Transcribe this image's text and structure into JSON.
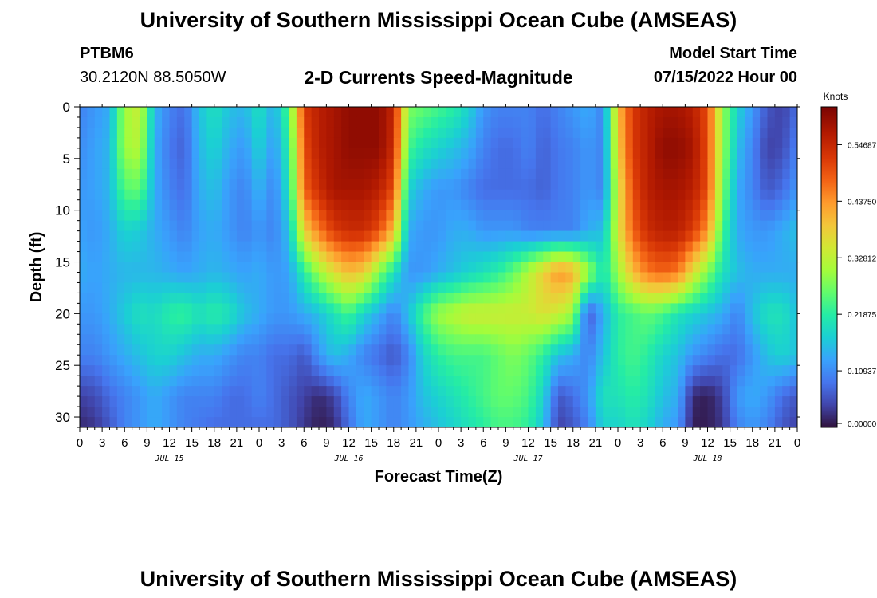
{
  "header": {
    "title": "University of Southern Mississippi Ocean Cube (AMSEAS)",
    "station": "PTBM6",
    "coordinates": "30.2120N  88.5050W",
    "subtitle": "2-D Currents Speed-Magnitude",
    "model_start_label": "Model Start Time",
    "model_start_value": "07/15/2022 Hour 00"
  },
  "footer": {
    "title": "University of Southern Mississippi Ocean Cube (AMSEAS)"
  },
  "chart_data": {
    "type": "heatmap",
    "xlabel": "Forecast Time(Z)",
    "ylabel": "Depth (ft)",
    "colorbar_label": "Knots",
    "x_tick_labels": [
      "0",
      "3",
      "6",
      "9",
      "12",
      "15",
      "18",
      "21",
      "0",
      "3",
      "6",
      "9",
      "12",
      "15",
      "18",
      "21",
      "0",
      "3",
      "6",
      "9",
      "12",
      "15",
      "18",
      "21",
      "0",
      "3",
      "6",
      "9",
      "12",
      "15",
      "18",
      "21",
      "0"
    ],
    "x_range_hours": [
      0,
      96
    ],
    "date_labels": [
      {
        "label": "JUL 15",
        "hour": 12
      },
      {
        "label": "JUL 16",
        "hour": 36
      },
      {
        "label": "JUL 17",
        "hour": 60
      },
      {
        "label": "JUL 18",
        "hour": 84
      }
    ],
    "y_ticks": [
      0,
      5,
      10,
      15,
      20,
      25,
      30
    ],
    "y_range": [
      0,
      31
    ],
    "y_inverted": true,
    "colorbar_ticks": [
      "0.00000",
      "0.10937",
      "0.21875",
      "0.32812",
      "0.43750",
      "0.54687"
    ],
    "colorbar_range": [
      0,
      0.62
    ],
    "time_hours": [
      0,
      2,
      4,
      6,
      8,
      10,
      12,
      14,
      16,
      18,
      20,
      22,
      24,
      26,
      28,
      30,
      32,
      34,
      36,
      38,
      40,
      42,
      44,
      46,
      48,
      50,
      52,
      54,
      56,
      58,
      60,
      62,
      64,
      66,
      68,
      70,
      72,
      74,
      76,
      78,
      80,
      82,
      84,
      86,
      88,
      90,
      92,
      94,
      96
    ],
    "depths_ft": [
      0,
      4,
      8,
      12,
      16,
      20,
      24,
      28,
      31
    ],
    "values": [
      [
        0.1,
        0.12,
        0.14,
        0.3,
        0.34,
        0.15,
        0.1,
        0.08,
        0.16,
        0.2,
        0.16,
        0.15,
        0.2,
        0.14,
        0.25,
        0.52,
        0.56,
        0.58,
        0.6,
        0.6,
        0.6,
        0.55,
        0.28,
        0.26,
        0.24,
        0.22,
        0.18,
        0.12,
        0.1,
        0.1,
        0.1,
        0.08,
        0.1,
        0.12,
        0.14,
        0.1,
        0.4,
        0.52,
        0.56,
        0.58,
        0.58,
        0.56,
        0.5,
        0.3,
        0.18,
        0.12,
        0.06,
        0.04,
        0.08
      ],
      [
        0.11,
        0.13,
        0.15,
        0.3,
        0.32,
        0.14,
        0.09,
        0.07,
        0.15,
        0.18,
        0.14,
        0.12,
        0.18,
        0.12,
        0.22,
        0.5,
        0.56,
        0.58,
        0.6,
        0.6,
        0.6,
        0.54,
        0.24,
        0.2,
        0.18,
        0.16,
        0.14,
        0.1,
        0.08,
        0.08,
        0.1,
        0.07,
        0.09,
        0.1,
        0.12,
        0.1,
        0.38,
        0.52,
        0.56,
        0.6,
        0.6,
        0.58,
        0.5,
        0.3,
        0.16,
        0.1,
        0.04,
        0.05,
        0.1
      ],
      [
        0.12,
        0.13,
        0.15,
        0.25,
        0.26,
        0.14,
        0.1,
        0.08,
        0.14,
        0.16,
        0.12,
        0.1,
        0.15,
        0.1,
        0.2,
        0.48,
        0.54,
        0.58,
        0.58,
        0.58,
        0.56,
        0.5,
        0.18,
        0.14,
        0.12,
        0.12,
        0.1,
        0.08,
        0.08,
        0.08,
        0.08,
        0.07,
        0.09,
        0.1,
        0.12,
        0.1,
        0.35,
        0.5,
        0.56,
        0.58,
        0.58,
        0.56,
        0.5,
        0.28,
        0.14,
        0.1,
        0.06,
        0.08,
        0.12
      ],
      [
        0.13,
        0.12,
        0.14,
        0.18,
        0.17,
        0.14,
        0.12,
        0.1,
        0.13,
        0.14,
        0.12,
        0.1,
        0.12,
        0.1,
        0.16,
        0.38,
        0.46,
        0.52,
        0.54,
        0.54,
        0.5,
        0.4,
        0.14,
        0.12,
        0.12,
        0.14,
        0.14,
        0.12,
        0.12,
        0.12,
        0.1,
        0.1,
        0.1,
        0.1,
        0.14,
        0.16,
        0.35,
        0.48,
        0.54,
        0.56,
        0.56,
        0.52,
        0.44,
        0.24,
        0.14,
        0.12,
        0.12,
        0.14,
        0.16
      ],
      [
        0.14,
        0.13,
        0.14,
        0.15,
        0.15,
        0.15,
        0.14,
        0.13,
        0.14,
        0.15,
        0.14,
        0.13,
        0.14,
        0.12,
        0.13,
        0.22,
        0.3,
        0.36,
        0.4,
        0.38,
        0.28,
        0.2,
        0.12,
        0.12,
        0.14,
        0.16,
        0.18,
        0.2,
        0.22,
        0.26,
        0.32,
        0.38,
        0.44,
        0.42,
        0.3,
        0.2,
        0.3,
        0.4,
        0.46,
        0.48,
        0.46,
        0.36,
        0.28,
        0.2,
        0.16,
        0.14,
        0.14,
        0.14,
        0.14
      ],
      [
        0.12,
        0.12,
        0.14,
        0.17,
        0.2,
        0.19,
        0.22,
        0.23,
        0.2,
        0.22,
        0.2,
        0.16,
        0.14,
        0.12,
        0.12,
        0.14,
        0.16,
        0.2,
        0.24,
        0.18,
        0.14,
        0.1,
        0.16,
        0.24,
        0.3,
        0.32,
        0.34,
        0.34,
        0.34,
        0.34,
        0.34,
        0.36,
        0.34,
        0.3,
        0.06,
        0.14,
        0.22,
        0.24,
        0.26,
        0.24,
        0.2,
        0.18,
        0.16,
        0.14,
        0.1,
        0.16,
        0.2,
        0.2,
        0.16
      ],
      [
        0.1,
        0.1,
        0.12,
        0.14,
        0.16,
        0.18,
        0.18,
        0.16,
        0.14,
        0.14,
        0.12,
        0.1,
        0.1,
        0.08,
        0.08,
        0.06,
        0.12,
        0.16,
        0.14,
        0.1,
        0.08,
        0.06,
        0.1,
        0.18,
        0.22,
        0.24,
        0.24,
        0.24,
        0.26,
        0.28,
        0.26,
        0.22,
        0.16,
        0.14,
        0.1,
        0.16,
        0.22,
        0.24,
        0.22,
        0.18,
        0.16,
        0.12,
        0.1,
        0.08,
        0.08,
        0.12,
        0.16,
        0.18,
        0.16
      ],
      [
        0.04,
        0.05,
        0.08,
        0.1,
        0.12,
        0.14,
        0.12,
        0.1,
        0.1,
        0.1,
        0.08,
        0.08,
        0.1,
        0.08,
        0.06,
        0.04,
        0.02,
        0.04,
        0.1,
        0.14,
        0.12,
        0.1,
        0.12,
        0.16,
        0.18,
        0.2,
        0.22,
        0.24,
        0.26,
        0.26,
        0.24,
        0.18,
        0.06,
        0.08,
        0.12,
        0.2,
        0.2,
        0.22,
        0.2,
        0.16,
        0.14,
        0.02,
        0.01,
        0.04,
        0.12,
        0.14,
        0.12,
        0.08,
        0.06
      ],
      [
        0.02,
        0.03,
        0.06,
        0.1,
        0.12,
        0.14,
        0.12,
        0.1,
        0.09,
        0.08,
        0.08,
        0.08,
        0.08,
        0.08,
        0.06,
        0.03,
        0.01,
        0.02,
        0.08,
        0.14,
        0.12,
        0.1,
        0.12,
        0.14,
        0.16,
        0.18,
        0.2,
        0.22,
        0.24,
        0.24,
        0.22,
        0.16,
        0.04,
        0.06,
        0.1,
        0.18,
        0.18,
        0.2,
        0.18,
        0.14,
        0.12,
        0.01,
        0.01,
        0.03,
        0.1,
        0.12,
        0.1,
        0.06,
        0.04
      ]
    ]
  }
}
